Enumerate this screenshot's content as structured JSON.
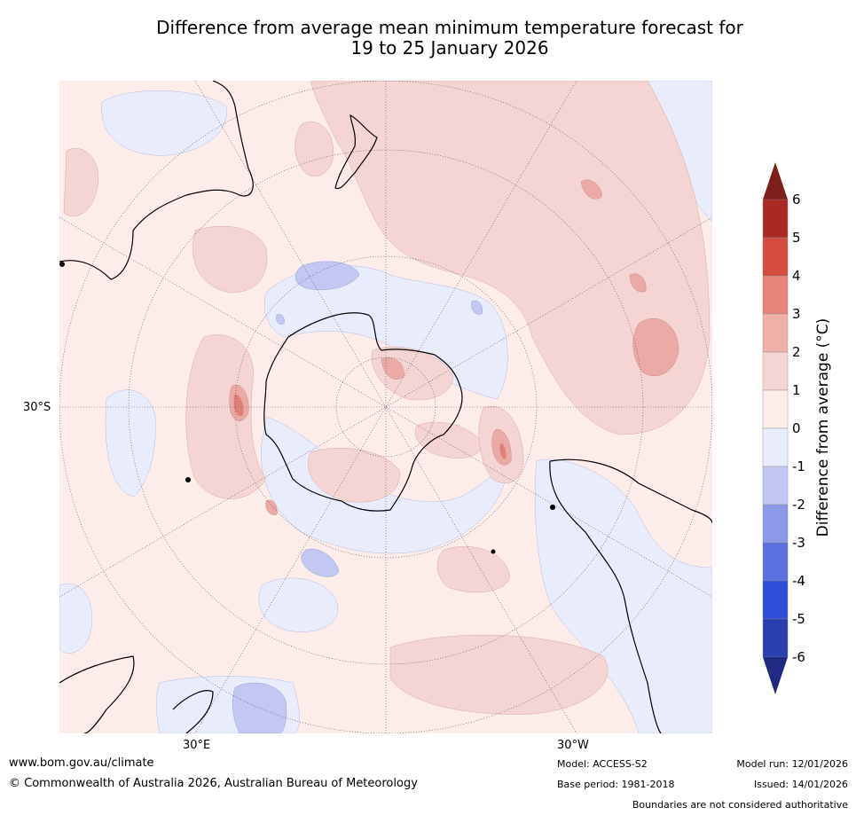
{
  "title": {
    "line1": "Difference from average mean minimum temperature forecast for",
    "line2": "19 to 25 January 2026"
  },
  "map": {
    "projection": "south polar stereographic",
    "lat_label": "30°S",
    "lon_labels": [
      "30°E",
      "30°W"
    ],
    "colors": {
      "ocean_neutral_pos": "#fcecea",
      "neutral_neg": "#e8ecfb",
      "band_1_2": "#f5d5d3",
      "band_2_3": "#ebaaa6",
      "band_3_4": "#e08177",
      "band_neg1_neg2": "#c2c8f2",
      "coast": "#000000",
      "graticule": "#555555"
    }
  },
  "colorbar": {
    "label": "Difference from average (°C)",
    "ticks": [
      "6",
      "5",
      "4",
      "3",
      "2",
      "1",
      "0",
      "-1",
      "-2",
      "-3",
      "-4",
      "-5",
      "-6"
    ],
    "colors": [
      "#a82a22",
      "#d54c41",
      "#e8857a",
      "#eeb0a9",
      "#f5d5d3",
      "#fcecea",
      "#e8ecfb",
      "#c1c7f2",
      "#8b99e8",
      "#5b70e0",
      "#2f4fd9",
      "#293fb1"
    ],
    "extend_top_color": "#7d1f1a",
    "extend_bottom_color": "#1f2a80"
  },
  "footer": {
    "website": "www.bom.gov.au/climate",
    "copyright": "© Commonwealth of Australia 2026, Australian Bureau of Meteorology",
    "model": "Model: ACCESS-S2",
    "base_period": "Base period: 1981-2018",
    "model_run": "Model run: 12/01/2026",
    "issued": "Issued: 14/01/2026",
    "disclaimer": "Boundaries are not considered authoritative"
  }
}
